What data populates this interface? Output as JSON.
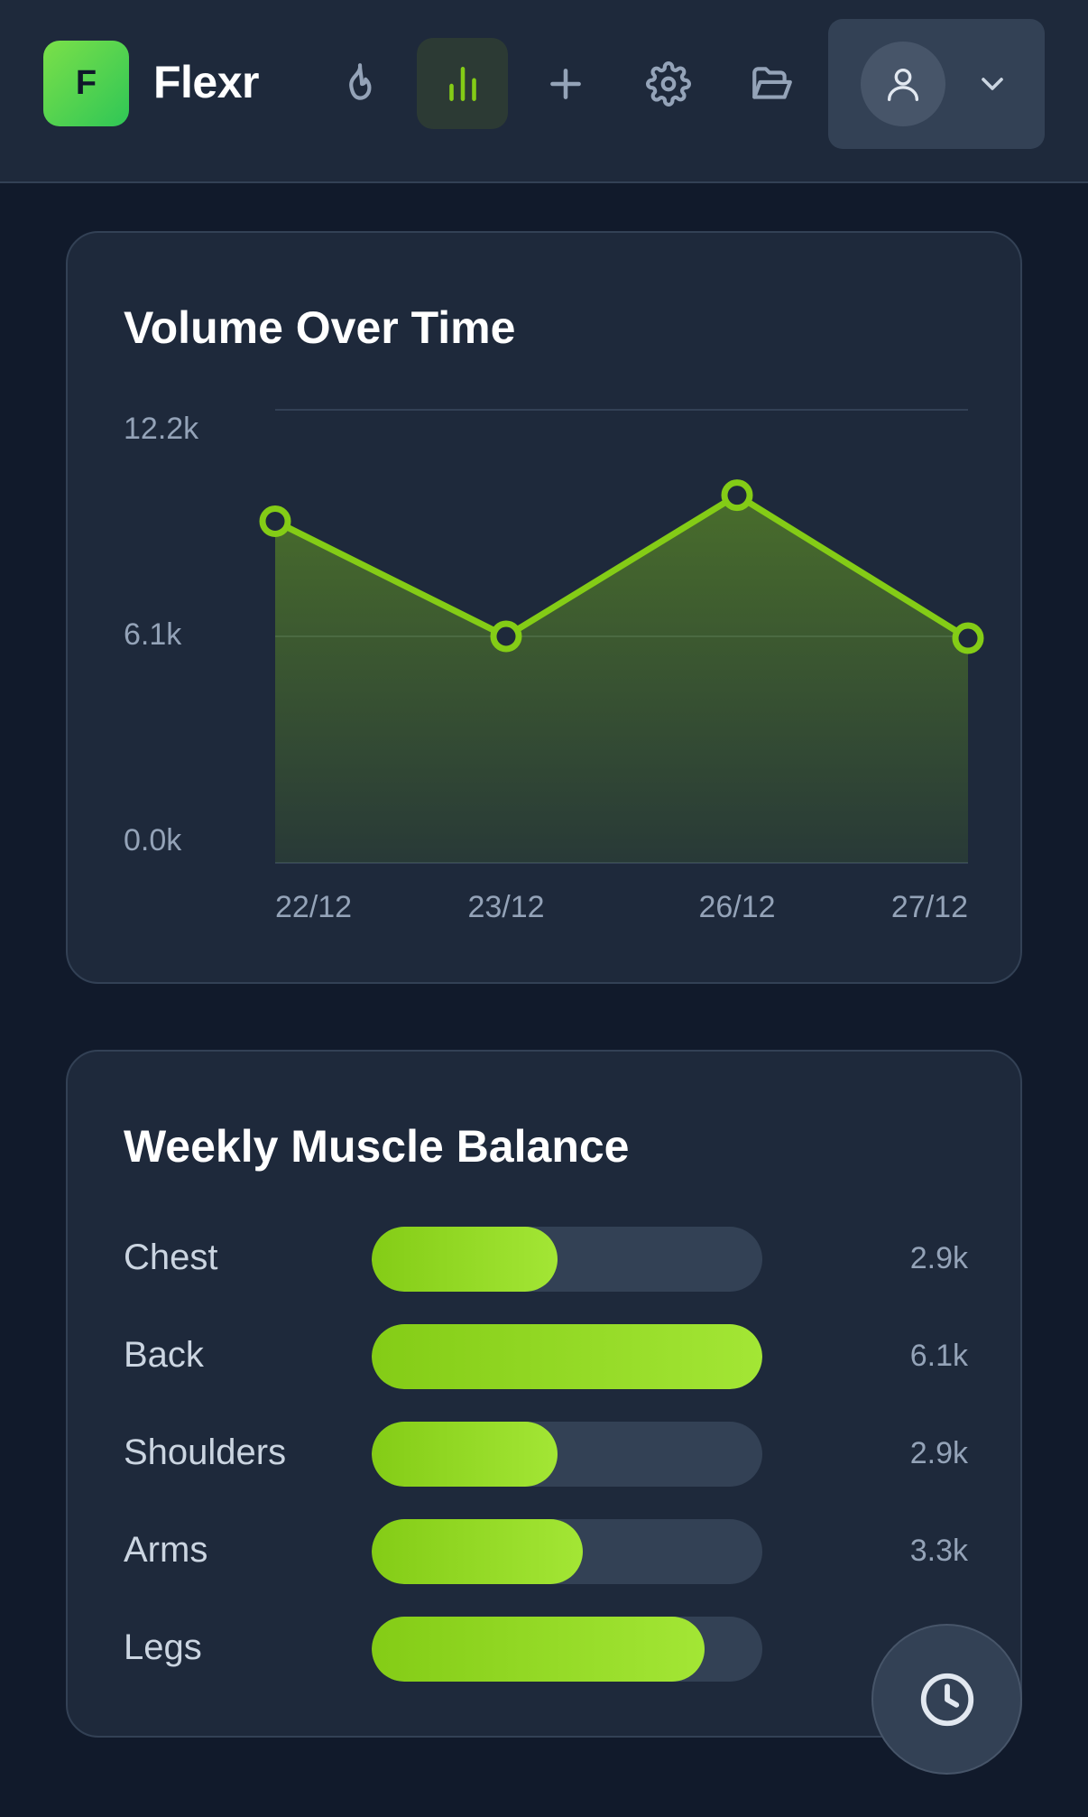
{
  "app": {
    "logo_letter": "F",
    "name": "Flexr"
  },
  "nav": {
    "items": [
      {
        "icon": "flame-icon"
      },
      {
        "icon": "bar-chart-icon",
        "active": true
      },
      {
        "icon": "plus-icon"
      },
      {
        "icon": "gear-icon"
      },
      {
        "icon": "folder-open-icon"
      }
    ],
    "profile": {
      "icon": "user-icon",
      "dropdown_icon": "chevron-down-icon"
    }
  },
  "colors": {
    "accent": "#84cc16",
    "accent_light": "#a3e635",
    "background": "#111a2b",
    "card": "#1e293b"
  },
  "volume_card": {
    "title": "Volume Over Time"
  },
  "chart_data": {
    "type": "area",
    "title": "Volume Over Time",
    "categories": [
      "22/12",
      "23/12",
      "26/12",
      "27/12"
    ],
    "values": [
      9200,
      6100,
      9900,
      6050
    ],
    "ylim": [
      0,
      12200
    ],
    "yticks": [
      "12.2k",
      "6.1k",
      "0.0k"
    ],
    "grid": true,
    "legend": "none"
  },
  "muscle_card": {
    "title": "Weekly Muscle Balance",
    "max": 6.1,
    "rows": [
      {
        "name": "Chest",
        "value": 2.9,
        "label": "2.9k"
      },
      {
        "name": "Back",
        "value": 6.1,
        "label": "6.1k"
      },
      {
        "name": "Shoulders",
        "value": 2.9,
        "label": "2.9k"
      },
      {
        "name": "Arms",
        "value": 3.3,
        "label": "3.3k"
      },
      {
        "name": "Legs",
        "value": 5.2,
        "label": ""
      }
    ]
  },
  "fab": {
    "icon": "clock-icon"
  }
}
